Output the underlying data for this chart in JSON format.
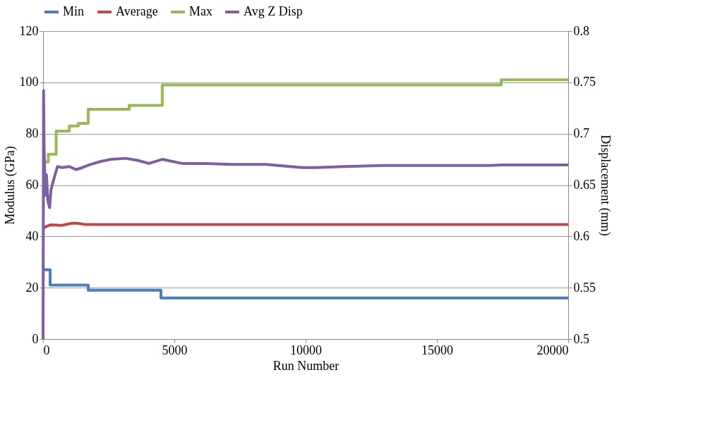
{
  "chart_data": {
    "type": "line",
    "xlabel": "Run Number",
    "ylabel": "Modulus (GPa)",
    "y2label": "Displacement (mm)",
    "xlim": [
      0,
      20000
    ],
    "xticks": [
      0,
      5000,
      10000,
      15000,
      20000
    ],
    "ylim": [
      0,
      120
    ],
    "yticks": [
      0,
      20,
      40,
      60,
      80,
      100,
      120
    ],
    "y2lim": [
      0.5,
      0.8
    ],
    "y2ticks": [
      0.5,
      0.55,
      0.6,
      0.65,
      0.7,
      0.75,
      0.8
    ],
    "grid": "y",
    "legend": "top",
    "line_style": "solid",
    "marker": "none",
    "series": [
      {
        "name": "Min",
        "type": "step",
        "color": "#4a7ebb",
        "x": [
          0,
          270,
          1720,
          4490,
          20000
        ],
        "values": [
          27,
          21,
          19,
          16,
          16
        ]
      },
      {
        "name": "Average",
        "color": "#be4b48",
        "x": [
          0,
          100,
          300,
          700,
          1100,
          1300,
          1600,
          3000,
          20000
        ],
        "values": [
          43,
          43.8,
          44.5,
          44.3,
          45.1,
          45.1,
          44.6,
          44.6,
          44.6
        ]
      },
      {
        "name": "Max",
        "type": "step",
        "color": "#98b954",
        "x": [
          0,
          200,
          500,
          1000,
          1340,
          1720,
          3280,
          4540,
          17450,
          20000
        ],
        "values": [
          69,
          72,
          81,
          83,
          84,
          89.5,
          91,
          99,
          101,
          101
        ]
      },
      {
        "name": "Avg Z Disp",
        "axis": "y2",
        "color": "#7d60a0",
        "x": [
          0,
          20,
          40,
          80,
          130,
          180,
          250,
          300,
          400,
          550,
          730,
          1000,
          1260,
          1500,
          1800,
          2200,
          2600,
          3150,
          3600,
          4030,
          4540,
          5300,
          6200,
          7180,
          8500,
          9860,
          10400,
          11500,
          13000,
          15240,
          17000,
          17500,
          20000
        ],
        "values": [
          0.5,
          0.742,
          0.69,
          0.64,
          0.66,
          0.635,
          0.628,
          0.645,
          0.655,
          0.668,
          0.667,
          0.668,
          0.665,
          0.667,
          0.67,
          0.673,
          0.675,
          0.676,
          0.674,
          0.671,
          0.675,
          0.671,
          0.671,
          0.67,
          0.67,
          0.667,
          0.667,
          0.668,
          0.669,
          0.669,
          0.669,
          0.6695,
          0.6695
        ]
      }
    ]
  }
}
